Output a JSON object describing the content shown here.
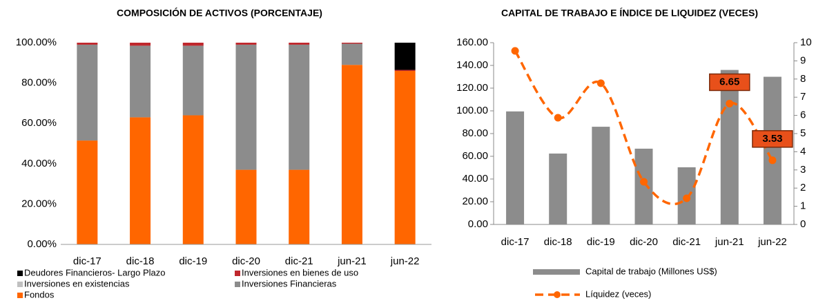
{
  "chart_data": [
    {
      "type": "stacked_bar",
      "title": "COMPOSICIÓN DE ACTIVOS (PORCENTAJE)",
      "categories": [
        "dic-17",
        "dic-18",
        "dic-19",
        "dic-20",
        "dic-21",
        "jun-21",
        "jun-22"
      ],
      "series": [
        {
          "name": "Fondos",
          "color": "#ff6600",
          "values": [
            51.5,
            63,
            64,
            37,
            37,
            89,
            86
          ]
        },
        {
          "name": "Inversiones Financieras",
          "color": "#8c8c8c",
          "values": [
            47.5,
            35.5,
            34.5,
            62,
            62,
            10.5,
            0
          ]
        },
        {
          "name": "Inversiones en existencias",
          "color": "#c0c0c0",
          "values": [
            0,
            0,
            0,
            0,
            0,
            0,
            0
          ]
        },
        {
          "name": "Inversiones en bienes de uso",
          "color": "#c0282d",
          "values": [
            1,
            1.5,
            1.5,
            1,
            1,
            0.5,
            0.5
          ]
        },
        {
          "name": "Deudores Financieros- Largo Plazo",
          "color": "#000000",
          "values": [
            0,
            0,
            0,
            0,
            0,
            0,
            13.5
          ]
        }
      ],
      "ylim": [
        0,
        100
      ],
      "yticks": [
        {
          "value": 0,
          "label": "0.00%"
        },
        {
          "value": 20,
          "label": "20.00%"
        },
        {
          "value": 40,
          "label": "40.00%"
        },
        {
          "value": 60,
          "label": "60.00%"
        },
        {
          "value": 80,
          "label": "80.00%"
        },
        {
          "value": 100,
          "label": "100.00%"
        }
      ],
      "legend": "bottom"
    },
    {
      "type": "bar_line",
      "title": "CAPITAL DE TRABAJO E ÍNDICE DE LIQUIDEZ (VECES)",
      "categories": [
        "dic-17",
        "dic-18",
        "dic-19",
        "dic-20",
        "dic-21",
        "jun-21",
        "jun-22"
      ],
      "series": [
        {
          "name": "Capital de trabajo (Millones US$)",
          "type": "bar",
          "color": "#8c8c8c",
          "values": [
            99.5,
            62.4,
            86,
            66.7,
            50.3,
            136,
            130
          ]
        },
        {
          "name": "Líquidez (veces)",
          "type": "line",
          "axis": "y2",
          "color": "#ff6600",
          "values": [
            9.55,
            5.87,
            7.77,
            2.35,
            1.44,
            6.65,
            3.53
          ],
          "value_labels": [
            null,
            null,
            null,
            null,
            null,
            "6.65",
            "3.53"
          ]
        }
      ],
      "ylim": [
        0,
        160
      ],
      "yticks": [
        {
          "value": 0,
          "label": "0.00"
        },
        {
          "value": 20,
          "label": "20.00"
        },
        {
          "value": 40,
          "label": "40.00"
        },
        {
          "value": 60,
          "label": "60.00"
        },
        {
          "value": 80,
          "label": "80.00"
        },
        {
          "value": 100,
          "label": "100.00"
        },
        {
          "value": 120,
          "label": "120.00"
        },
        {
          "value": 140,
          "label": "140.00"
        },
        {
          "value": 160,
          "label": "160.00"
        }
      ],
      "y2lim": [
        0,
        10
      ],
      "y2ticks": [
        0,
        1,
        2,
        3,
        4,
        5,
        6,
        7,
        8,
        9,
        10
      ],
      "legend": "bottom"
    }
  ]
}
